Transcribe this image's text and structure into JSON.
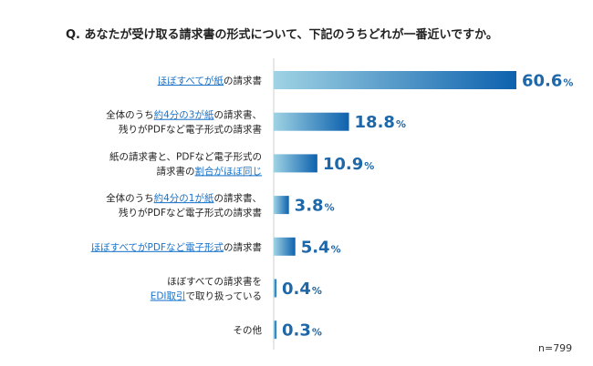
{
  "chart_data": {
    "type": "bar",
    "orientation": "horizontal",
    "title": "Q. あなたが受け取る請求書の形式について、下記のうちどれが一番近いですか。",
    "note": "n=799",
    "unit": "%",
    "bar_colors": [
      "#9fd3e4",
      "#0d61ae"
    ],
    "categories": [
      {
        "lines": [
          [
            {
              "t": "ほぼすべてが紙",
              "hl": true
            },
            {
              "t": "の請求書",
              "hl": false
            }
          ]
        ]
      },
      {
        "lines": [
          [
            {
              "t": "全体のうち",
              "hl": false
            },
            {
              "t": "約4分の3が紙",
              "hl": true
            },
            {
              "t": "の請求書、",
              "hl": false
            }
          ],
          [
            {
              "t": "残りがPDFなど電子形式の請求書",
              "hl": false
            }
          ]
        ]
      },
      {
        "lines": [
          [
            {
              "t": "紙の請求書と、PDFなど電子形式の",
              "hl": false
            }
          ],
          [
            {
              "t": "請求書の",
              "hl": false
            },
            {
              "t": "割合がほぼ同じ",
              "hl": true
            }
          ]
        ]
      },
      {
        "lines": [
          [
            {
              "t": "全体のうち",
              "hl": false
            },
            {
              "t": "約4分の1が紙",
              "hl": true
            },
            {
              "t": "の請求書、",
              "hl": false
            }
          ],
          [
            {
              "t": "残りがPDFなど電子形式の請求書",
              "hl": false
            }
          ]
        ]
      },
      {
        "lines": [
          [
            {
              "t": "ほぼすべてがPDFなど電子形式",
              "hl": true
            },
            {
              "t": "の請求書",
              "hl": false
            }
          ]
        ]
      },
      {
        "lines": [
          [
            {
              "t": "ほぼすべての請求書を",
              "hl": false
            }
          ],
          [
            {
              "t": "EDI取引",
              "hl": true
            },
            {
              "t": "で取り扱っている",
              "hl": false
            }
          ]
        ]
      },
      {
        "lines": [
          [
            {
              "t": "その他",
              "hl": false
            }
          ]
        ]
      }
    ],
    "values": [
      60.6,
      18.8,
      10.9,
      3.8,
      5.4,
      0.4,
      0.3
    ],
    "value_labels": [
      "60.6",
      "18.8",
      "10.9",
      "3.8",
      "5.4",
      "0.4",
      "0.3"
    ],
    "xlim": [
      0,
      60.6
    ]
  }
}
